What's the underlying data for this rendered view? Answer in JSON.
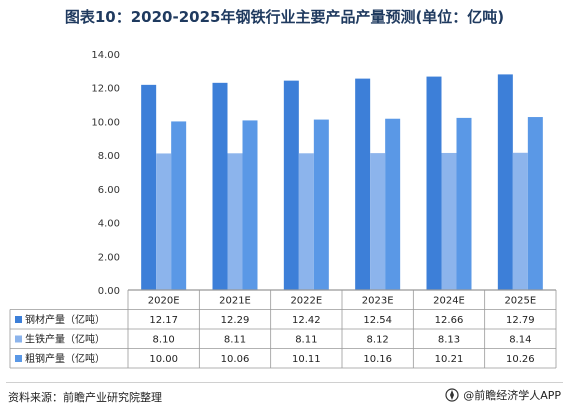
{
  "chart_data": {
    "type": "bar",
    "title": "图表10：2020-2025年钢铁行业主要产品产量预测(单位：亿吨)",
    "categories": [
      "2020E",
      "2021E",
      "2022E",
      "2023E",
      "2024E",
      "2025E"
    ],
    "series": [
      {
        "name": "钢材产量（亿吨）",
        "color": "#3d7fd8",
        "values": [
          12.17,
          12.29,
          12.42,
          12.54,
          12.66,
          12.79
        ]
      },
      {
        "name": "生铁产量（亿吨）",
        "color": "#8cb4ec",
        "values": [
          8.1,
          8.11,
          8.11,
          8.12,
          8.13,
          8.14
        ]
      },
      {
        "name": "粗钢产量（亿吨）",
        "color": "#5a98e6",
        "values": [
          10.0,
          10.06,
          10.11,
          10.16,
          10.21,
          10.26
        ]
      }
    ],
    "table_values": [
      [
        "12.17",
        "12.29",
        "12.42",
        "12.54",
        "12.66",
        "12.79"
      ],
      [
        "8.10",
        "8.11",
        "8.11",
        "8.12",
        "8.13",
        "8.14"
      ],
      [
        "10.00",
        "10.06",
        "10.11",
        "10.16",
        "10.21",
        "10.26"
      ]
    ],
    "yticks": [
      "0.00",
      "2.00",
      "4.00",
      "6.00",
      "8.00",
      "10.00",
      "12.00",
      "14.00"
    ],
    "ylim": [
      0,
      14
    ],
    "grid": false,
    "legend": "data-table-below"
  },
  "footer": {
    "source": "资料来源：前瞻产业研究院整理",
    "brand": "@前瞻经济学人APP"
  },
  "colors": {
    "axis": "#999999",
    "title": "#1f3a5f"
  },
  "icons": {
    "brand_logo": "compass-logo-icon"
  }
}
